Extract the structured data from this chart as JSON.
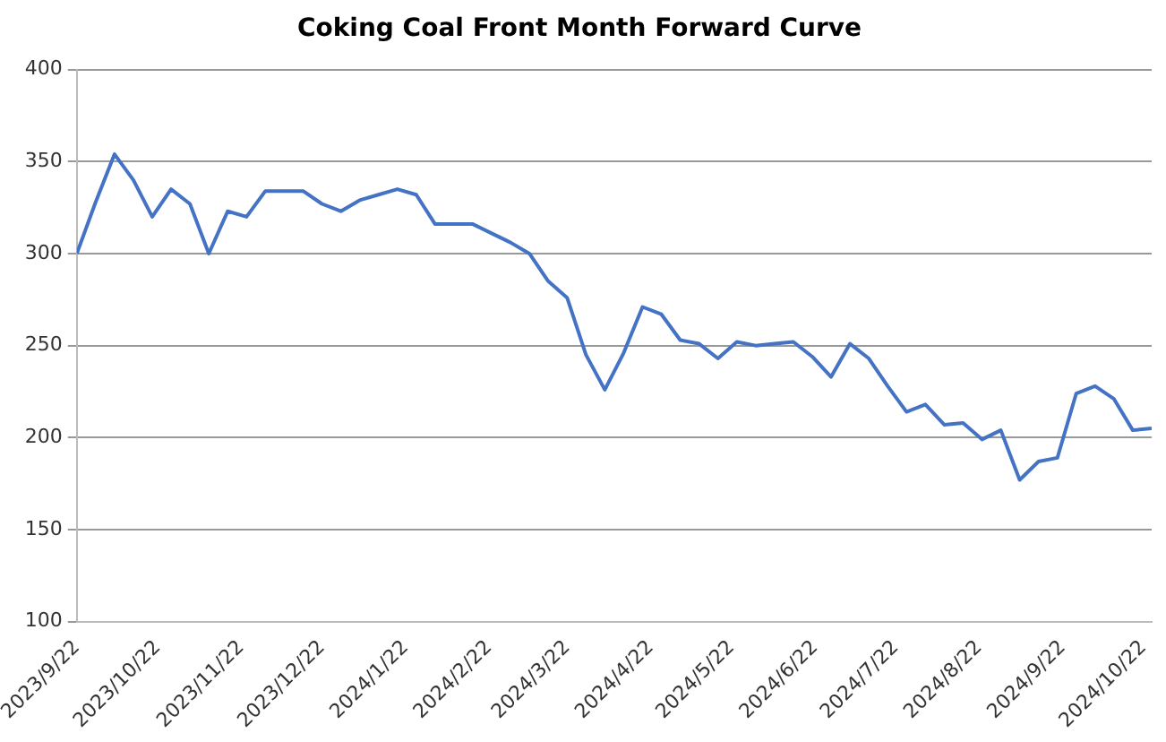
{
  "chart_data": {
    "type": "line",
    "title": "Coking Coal Front Month Forward Curve",
    "x": [
      "2023-09-22",
      "2023-09-29",
      "2023-10-06",
      "2023-10-13",
      "2023-10-20",
      "2023-10-27",
      "2023-11-03",
      "2023-11-10",
      "2023-11-17",
      "2023-11-24",
      "2023-12-01",
      "2023-12-08",
      "2023-12-15",
      "2023-12-22",
      "2023-12-29",
      "2024-01-05",
      "2024-01-12",
      "2024-01-19",
      "2024-01-26",
      "2024-02-02",
      "2024-02-09",
      "2024-02-16",
      "2024-02-23",
      "2024-03-01",
      "2024-03-08",
      "2024-03-15",
      "2024-03-22",
      "2024-03-29",
      "2024-04-05",
      "2024-04-12",
      "2024-04-19",
      "2024-04-26",
      "2024-05-03",
      "2024-05-10",
      "2024-05-17",
      "2024-05-24",
      "2024-05-31",
      "2024-06-07",
      "2024-06-14",
      "2024-06-21",
      "2024-06-28",
      "2024-07-05",
      "2024-07-12",
      "2024-07-19",
      "2024-07-26",
      "2024-08-02",
      "2024-08-09",
      "2024-08-16",
      "2024-08-23",
      "2024-08-30",
      "2024-09-06",
      "2024-09-13",
      "2024-09-20",
      "2024-09-27",
      "2024-10-04",
      "2024-10-11",
      "2024-10-18",
      "2024-10-25"
    ],
    "series": [
      {
        "color": "#4472c4",
        "values": [
          300,
          328,
          354,
          340,
          320,
          335,
          327,
          300,
          323,
          320,
          334,
          334,
          334,
          327,
          323,
          329,
          332,
          335,
          332,
          316,
          316,
          316,
          311,
          306,
          300,
          285,
          276,
          245,
          226,
          246,
          271,
          267,
          253,
          251,
          243,
          252,
          250,
          251,
          252,
          244,
          233,
          251,
          243,
          228,
          214,
          218,
          207,
          208,
          199,
          204,
          177,
          187,
          189,
          224,
          228,
          221,
          204,
          205
        ]
      }
    ],
    "xlim": [
      "2023-09-22",
      "2024-10-25"
    ],
    "xticks": [
      {
        "value": "2023-09-22",
        "label": "2023/9/22"
      },
      {
        "value": "2023-10-22",
        "label": "2023/10/22"
      },
      {
        "value": "2023-11-22",
        "label": "2023/11/22"
      },
      {
        "value": "2023-12-22",
        "label": "2023/12/22"
      },
      {
        "value": "2024-01-22",
        "label": "2024/1/22"
      },
      {
        "value": "2024-02-22",
        "label": "2024/2/22"
      },
      {
        "value": "2024-03-22",
        "label": "2024/3/22"
      },
      {
        "value": "2024-04-22",
        "label": "2024/4/22"
      },
      {
        "value": "2024-05-22",
        "label": "2024/5/22"
      },
      {
        "value": "2024-06-22",
        "label": "2024/6/22"
      },
      {
        "value": "2024-07-22",
        "label": "2024/7/22"
      },
      {
        "value": "2024-08-22",
        "label": "2024/8/22"
      },
      {
        "value": "2024-09-22",
        "label": "2024/9/22"
      },
      {
        "value": "2024-10-22",
        "label": "2024/10/22"
      }
    ],
    "ylim": [
      100,
      400
    ],
    "yticks": [
      100,
      150,
      200,
      250,
      300,
      350,
      400
    ],
    "grid": "y",
    "legend": false,
    "marker": "none",
    "line_style": "solid"
  }
}
